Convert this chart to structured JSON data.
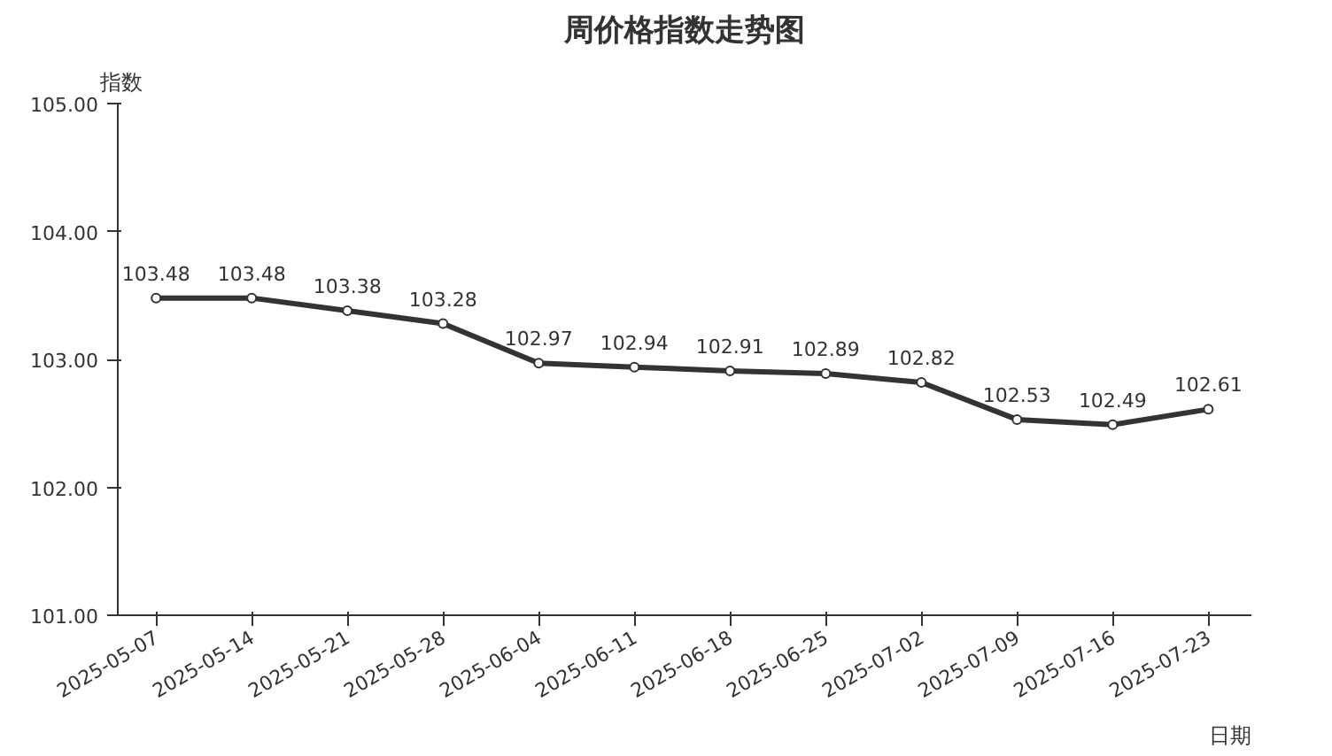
{
  "chart_data": {
    "type": "line",
    "title": "周价格指数走势图",
    "xlabel": "日期",
    "ylabel": "指数",
    "categories": [
      "2025-05-07",
      "2025-05-14",
      "2025-05-21",
      "2025-05-28",
      "2025-06-04",
      "2025-06-11",
      "2025-06-18",
      "2025-06-25",
      "2025-07-02",
      "2025-07-09",
      "2025-07-16",
      "2025-07-23"
    ],
    "series": [
      {
        "color": "#333333",
        "values": [
          103.48,
          103.48,
          103.38,
          103.28,
          102.97,
          102.94,
          102.91,
          102.89,
          102.82,
          102.53,
          102.49,
          102.61
        ]
      }
    ],
    "ylim": [
      101,
      105
    ],
    "yticks": [
      {
        "value": 101,
        "label": "101.00"
      },
      {
        "value": 102,
        "label": "102.00"
      },
      {
        "value": 103,
        "label": "103.00"
      },
      {
        "value": 104,
        "label": "104.00"
      },
      {
        "value": 105,
        "label": "105.00"
      }
    ],
    "data_labels": true,
    "marker": "circle",
    "line_style": "solid",
    "grid": false
  }
}
